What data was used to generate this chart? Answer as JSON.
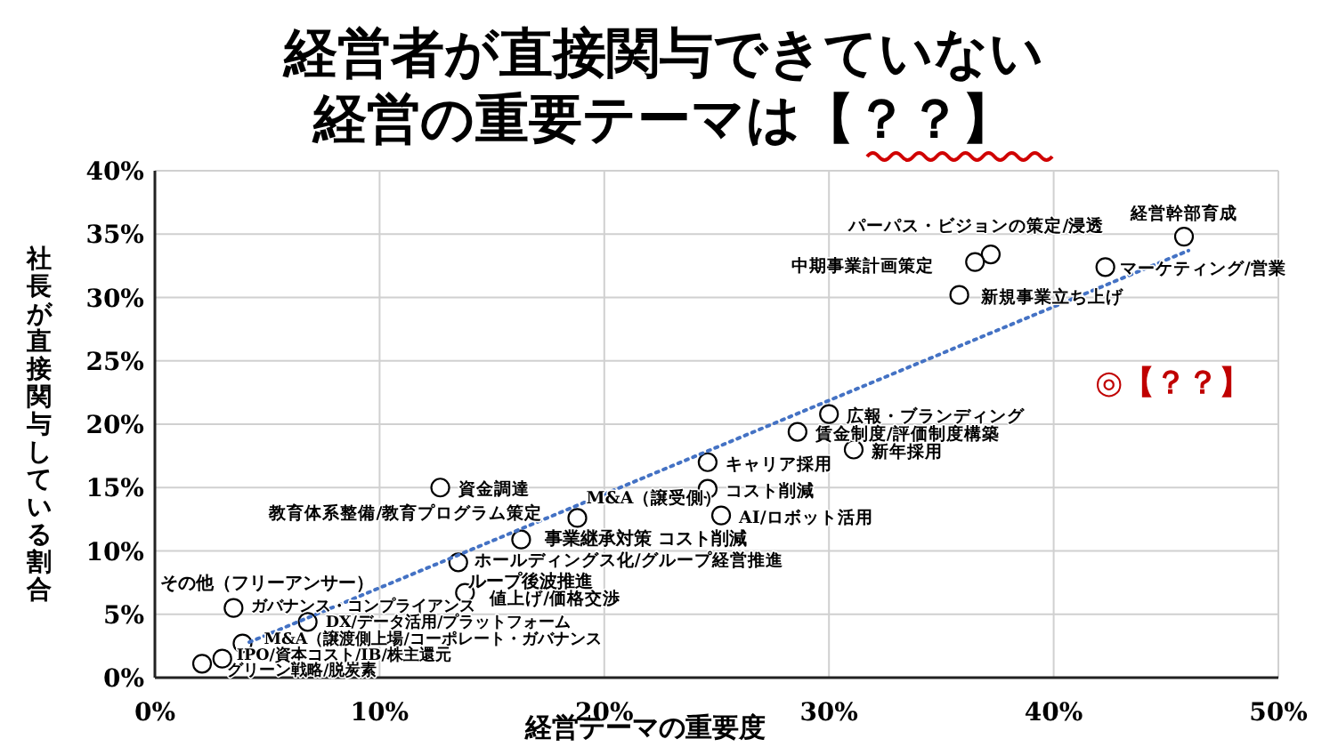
{
  "chart_data": {
    "type": "scatter",
    "title": "経営者が直接関与できていない経営の重要テーマは【？？】",
    "xlabel": "経営テーマの重要度",
    "ylabel": "社長が直接関与している割合",
    "xlim": [
      0,
      50
    ],
    "ylim": [
      0,
      40
    ],
    "xticks": [
      {
        "value": 0,
        "label": "0%"
      },
      {
        "value": 10,
        "label": "10%"
      },
      {
        "value": 20,
        "label": "20%"
      },
      {
        "value": 30,
        "label": "30%"
      },
      {
        "value": 40,
        "label": "40%"
      },
      {
        "value": 50,
        "label": "50%"
      }
    ],
    "yticks": [
      {
        "value": 0,
        "label": "0%"
      },
      {
        "value": 5,
        "label": "5%"
      },
      {
        "value": 10,
        "label": "10%"
      },
      {
        "value": 15,
        "label": "15%"
      },
      {
        "value": 20,
        "label": "20%"
      },
      {
        "value": 25,
        "label": "25%"
      },
      {
        "value": 30,
        "label": "30%"
      },
      {
        "value": 35,
        "label": "35%"
      },
      {
        "value": 40,
        "label": "40%"
      }
    ],
    "grid": true,
    "series": [
      {
        "color": "#000000",
        "marker": "circle",
        "x": [
          45.8,
          42.3,
          37.2,
          36.5,
          35.8,
          30.0,
          28.6,
          31.1,
          24.6,
          24.6,
          25.2,
          12.7,
          16.3,
          18.8,
          13.5,
          13.8,
          3.5,
          6.8,
          3.9,
          3.0,
          2.1
        ],
        "values": [
          34.8,
          32.4,
          33.4,
          32.8,
          30.2,
          20.8,
          19.4,
          18.0,
          17.0,
          14.9,
          12.8,
          15.0,
          10.9,
          12.6,
          9.1,
          6.7,
          5.5,
          4.4,
          2.7,
          1.5,
          1.1
        ]
      },
      {
        "type": "line",
        "color": "#4472c4",
        "line_style": "dotted",
        "marker": "none",
        "x": [
          4.2,
          46.0
        ],
        "values": [
          2.8,
          33.7
        ]
      }
    ],
    "annotations": [
      {
        "text": "経営幹部育成",
        "x": 45.8,
        "y": 34.8
      },
      {
        "text": "マーケティング/営業",
        "x": 42.3,
        "y": 32.4
      },
      {
        "text": "パーパス・ビジョンの策定/浸透",
        "x": 37.2,
        "y": 33.4
      },
      {
        "text": "中期事業計画策定",
        "x": 36.5,
        "y": 32.8
      },
      {
        "text": "新規事業立ち上げ",
        "x": 35.8,
        "y": 30.2
      },
      {
        "text": "広報・ブランディング",
        "x": 30.0,
        "y": 20.8
      },
      {
        "text": "賃金制度/評価制度構築",
        "x": 28.6,
        "y": 19.4
      },
      {
        "text": "新年採用",
        "x": 31.1,
        "y": 18.0
      },
      {
        "text": "キャリア採用",
        "x": 24.6,
        "y": 17.0
      },
      {
        "text": "コスト削減",
        "x": 24.6,
        "y": 14.9
      },
      {
        "text": "AI/ロボット活用",
        "x": 25.2,
        "y": 12.8
      },
      {
        "text": "資金調達",
        "x": 12.7,
        "y": 15.0
      },
      {
        "text": "教育体系整備/教育プログラム策定",
        "x": 16.3,
        "y": 10.9
      },
      {
        "text": "M&A（譲受側）",
        "x": 18.8,
        "y": 12.6
      },
      {
        "text": "ホールディングス化/グループ経営推進",
        "x": 13.5,
        "y": 9.1
      },
      {
        "text": "値上げ/価格交渉",
        "x": 13.8,
        "y": 6.7
      },
      {
        "text": "ガバナンス・コンプライアンス",
        "x": 3.5,
        "y": 5.5
      },
      {
        "text": "DX/データ活用/プラットフォーム",
        "x": 6.8,
        "y": 4.4
      },
      {
        "text": "M&A（譲渡側上場/コーポレート・ガバナンス",
        "x": 3.9,
        "y": 2.7
      },
      {
        "text": "IPO/資本コスト/IB/株主還元",
        "x": 3.0,
        "y": 1.5
      },
      {
        "text": "グリーン戦略/脱炭素",
        "x": 2.1,
        "y": 1.1
      },
      "その他（フリーアンサー）",
      "ループ後波推進",
      "事業継承対策 コスト削減",
      "◎【？？】"
    ]
  }
}
